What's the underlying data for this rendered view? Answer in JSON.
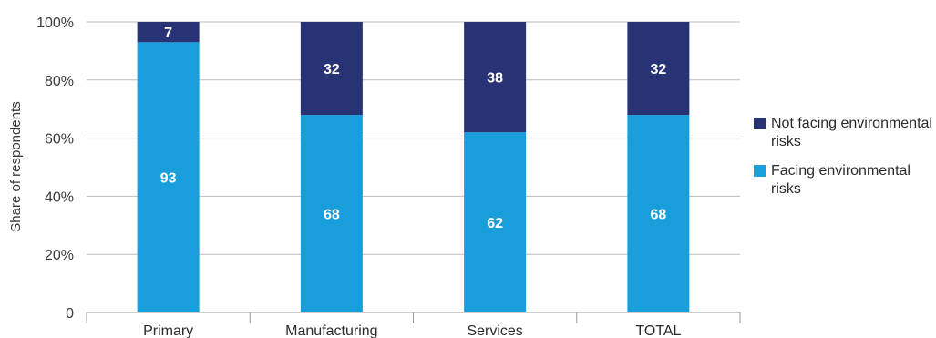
{
  "chart_data": {
    "type": "bar",
    "stacked": true,
    "title": "",
    "xlabel": "",
    "ylabel": "Share of respondents",
    "ylim": [
      0,
      100
    ],
    "yticks": [
      0,
      20,
      40,
      60,
      80,
      100
    ],
    "ytick_labels": [
      "0",
      "20%",
      "40%",
      "60%",
      "80%",
      "100%"
    ],
    "grid": true,
    "legend_position": "right",
    "categories": [
      "Primary",
      "Manufacturing",
      "Services",
      "TOTAL"
    ],
    "series": [
      {
        "name": "Facing environmental risks",
        "values": [
          93,
          68,
          62,
          68
        ],
        "color": "#189fdb"
      },
      {
        "name": "Not facing environmental risks",
        "values": [
          7,
          32,
          38,
          32
        ],
        "color": "#283376"
      }
    ]
  }
}
